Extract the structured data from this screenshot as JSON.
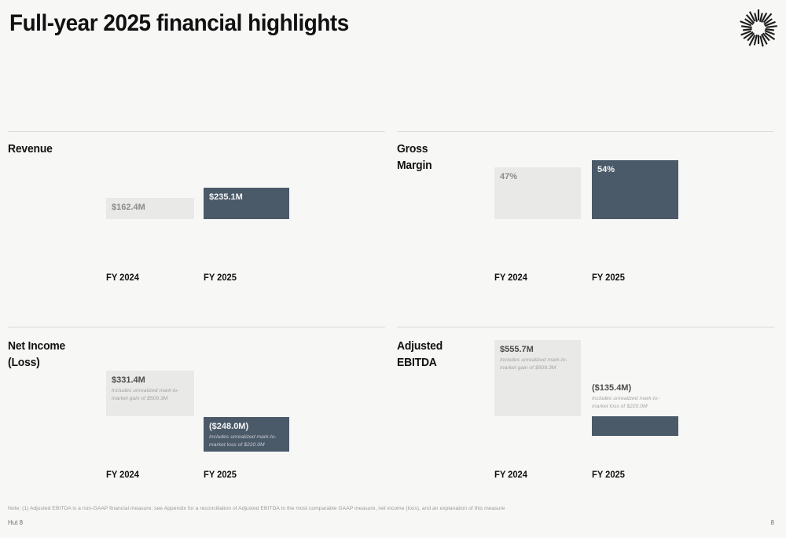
{
  "header": {
    "title": "Full-year 2025 financial highlights",
    "logo": "hut8-starburst-icon"
  },
  "sections": [
    {
      "title": "Revenue",
      "bars": [
        {
          "label": "FY 2024",
          "value": "$162.4M",
          "note": ""
        },
        {
          "label": "FY 2025",
          "value": "$235.1M",
          "note": ""
        }
      ]
    },
    {
      "title": "Gross Margin",
      "bars": [
        {
          "label": "FY 2024",
          "value": "47%",
          "note": ""
        },
        {
          "label": "FY 2025",
          "value": "54%",
          "note": ""
        }
      ]
    },
    {
      "title": "Net Income (Loss)",
      "bars": [
        {
          "label": "FY 2024",
          "value": "$331.4M",
          "note": "Includes unrealized mark-to-market gain of $509.3M"
        },
        {
          "label": "FY 2025",
          "value": "($248.0M)",
          "note": "Includes unrealized mark-to-market loss of $220.0M"
        }
      ]
    },
    {
      "title": "Adjusted EBITDA",
      "bars": [
        {
          "label": "FY 2024",
          "value": "$555.7M",
          "note": "Includes unrealized mark-to-market gain of $509.3M"
        },
        {
          "label": "FY 2025",
          "value": "($135.4M)",
          "note": "Includes unrealized mark-to-market loss of $220.0M"
        }
      ]
    }
  ],
  "footnote": "Note: (1) Adjusted EBITDA is a non-GAAP financial measure; see Appendix for a reconciliation of Adjusted EBITDA to the most comparable GAAP measure, net income (loss), and an explanation of this measure",
  "footer": {
    "brand": "Hut 8",
    "page_number": "8"
  },
  "colors": {
    "background": "#f7f7f6",
    "bar_prior_year": "#e9e9e8",
    "bar_current_year": "#4b5a69",
    "divider": "#dcdcdb"
  },
  "chart_data": [
    {
      "type": "bar",
      "title": "Revenue",
      "categories": [
        "FY 2024",
        "FY 2025"
      ],
      "values": [
        162.4,
        235.1
      ],
      "unit": "USD millions",
      "data_labels": [
        "$162.4M",
        "$235.1M"
      ],
      "ylim": [
        0,
        250
      ],
      "grid": false,
      "legend": "none"
    },
    {
      "type": "bar",
      "title": "Gross Margin",
      "categories": [
        "FY 2024",
        "FY 2025"
      ],
      "values": [
        47,
        54
      ],
      "unit": "percent",
      "data_labels": [
        "47%",
        "54%"
      ],
      "ylim": [
        0,
        60
      ],
      "grid": false,
      "legend": "none"
    },
    {
      "type": "bar",
      "title": "Net Income (Loss)",
      "categories": [
        "FY 2024",
        "FY 2025"
      ],
      "values": [
        331.4,
        -248.0
      ],
      "unit": "USD millions",
      "data_labels": [
        "$331.4M",
        "($248.0M)"
      ],
      "annotations": [
        "Includes unrealized mark-to-market gain of $509.3M",
        "Includes unrealized mark-to-market loss of $220.0M"
      ],
      "baseline": 0,
      "grid": false,
      "legend": "none"
    },
    {
      "type": "bar",
      "title": "Adjusted EBITDA",
      "categories": [
        "FY 2024",
        "FY 2025"
      ],
      "values": [
        555.7,
        -135.4
      ],
      "unit": "USD millions",
      "data_labels": [
        "$555.7M",
        "($135.4M)"
      ],
      "annotations": [
        "Includes unrealized mark-to-market gain of $509.3M",
        "Includes unrealized mark-to-market loss of $220.0M"
      ],
      "baseline": 0,
      "grid": false,
      "legend": "none"
    }
  ]
}
